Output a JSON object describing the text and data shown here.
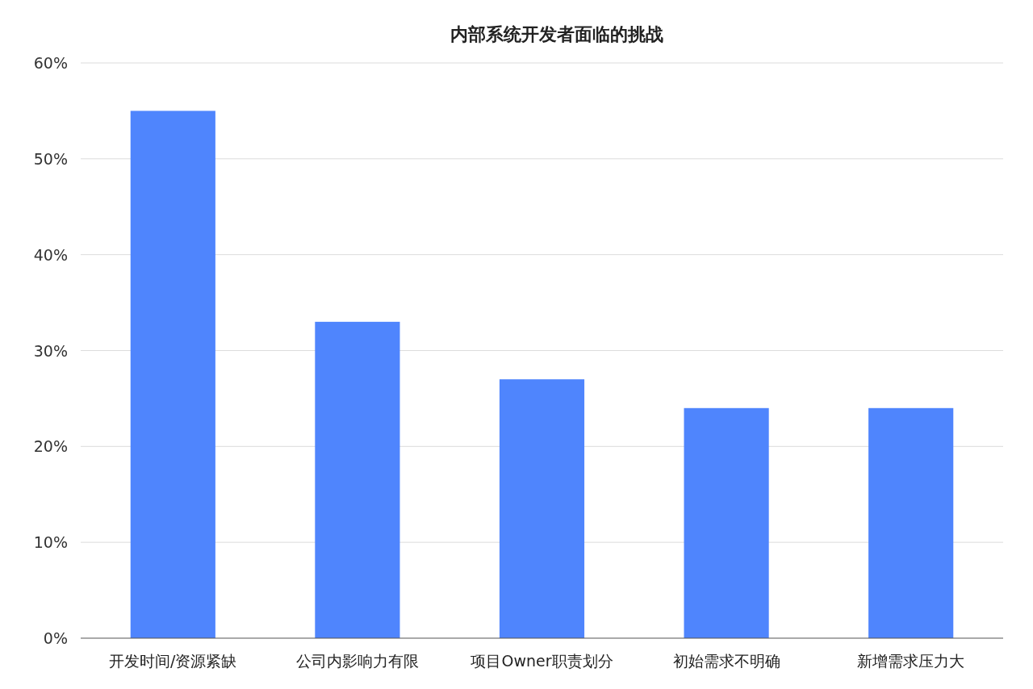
{
  "chart_data": {
    "type": "bar",
    "title": "内部系统开发者面临的挑战",
    "categories": [
      "开发时间/资源紧缺",
      "公司内影响力有限",
      "项目Owner职责划分",
      "初始需求不明确",
      "新增需求压力大"
    ],
    "values": [
      55,
      33,
      27,
      24,
      24
    ],
    "color": "#4f85fd",
    "ylim": [
      0,
      60
    ],
    "yticks": [
      {
        "value": 0,
        "label": "0%"
      },
      {
        "value": 10,
        "label": "10%"
      },
      {
        "value": 20,
        "label": "20%"
      },
      {
        "value": 30,
        "label": "30%"
      },
      {
        "value": 40,
        "label": "40%"
      },
      {
        "value": 50,
        "label": "50%"
      },
      {
        "value": 60,
        "label": "60%"
      }
    ],
    "grid": "y"
  }
}
